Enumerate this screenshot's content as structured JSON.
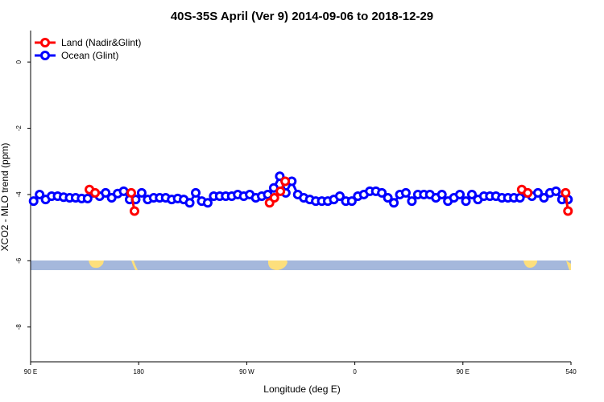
{
  "chart_data": {
    "type": "line",
    "title": "40S-35S April (Ver 9)   2014-09-06 to 2018-12-29",
    "xlabel": "Longitude (deg E)",
    "ylabel": "XCO2 - MLO trend (ppm)",
    "xlim": [
      90,
      540
    ],
    "ylim": [
      -9.05,
      0.95
    ],
    "xticks": [
      {
        "value": 90,
        "label": "90 E"
      },
      180,
      {
        "value": 270,
        "label": "90 W"
      },
      {
        "value": 360,
        "label": "0"
      },
      {
        "value": 450,
        "label": "90 E"
      },
      540
    ],
    "yticks": [
      0,
      -2,
      -4,
      -6,
      -8
    ],
    "legend": "top-left",
    "series": [
      {
        "name": "Land (Nadir&Glint)",
        "color": "#ff0000",
        "x": [
          139,
          143.7,
          null,
          173.8,
          176.5,
          null,
          289,
          293,
          298,
          302,
          null,
          499,
          504,
          null,
          535.5,
          537.5
        ],
        "values": [
          -3.85,
          -3.95,
          null,
          -3.95,
          -4.5,
          null,
          -4.25,
          -4.1,
          -3.9,
          -3.6,
          null,
          -3.85,
          -3.95,
          null,
          -3.95,
          -4.5
        ]
      },
      {
        "name": "Ocean (Glint)",
        "color": "#0000ff",
        "x": [
          92.5,
          97.5,
          102.5,
          107.5,
          112.5,
          117.5,
          122.5,
          127.5,
          132.5,
          137.5,
          142.5,
          147.5,
          152.5,
          157.5,
          162.5,
          167.5,
          172.5,
          177.5,
          182.5,
          187.5,
          192.5,
          197.5,
          202.5,
          207.5,
          212.5,
          217.5,
          222.5,
          227.5,
          232.5,
          237.5,
          242.5,
          247.5,
          252.5,
          257.5,
          262.5,
          267.5,
          272.5,
          277.5,
          282.5,
          287.5,
          292.5,
          297.5,
          302.5,
          307.5,
          312.5,
          317.5,
          322.5,
          327.5,
          332.5,
          337.5,
          342.5,
          347.5,
          352.5,
          357.5,
          362.5,
          367.5,
          372.5,
          377.5,
          382.5,
          387.5,
          392.5,
          397.5,
          402.5,
          407.5,
          412.5,
          417.5,
          422.5,
          427.5,
          432.5,
          437.5,
          442.5,
          447.5,
          452.5,
          457.5,
          462.5,
          467.5,
          472.5,
          477.5,
          482.5,
          487.5,
          492.5,
          497.5,
          502.5,
          507.5,
          512.5,
          517.5,
          522.5,
          527.5,
          532.5,
          537.5
        ],
        "values": [
          -4.2,
          -4.0,
          -4.15,
          -4.05,
          -4.05,
          -4.08,
          -4.1,
          -4.1,
          -4.12,
          -4.12,
          -3.95,
          -4.05,
          -3.95,
          -4.1,
          -3.97,
          -3.9,
          -4.15,
          -4.15,
          -3.95,
          -4.15,
          -4.1,
          -4.1,
          -4.1,
          -4.15,
          -4.12,
          -4.15,
          -4.25,
          -3.95,
          -4.2,
          -4.25,
          -4.05,
          -4.05,
          -4.05,
          -4.05,
          -4.0,
          -4.05,
          -4.0,
          -4.1,
          -4.05,
          -4.0,
          -3.8,
          -3.45,
          -3.95,
          -3.6,
          -4.0,
          -4.1,
          -4.15,
          -4.2,
          -4.2,
          -4.2,
          -4.15,
          -4.05,
          -4.2,
          -4.2,
          -4.05,
          -4.0,
          -3.9,
          -3.9,
          -3.95,
          -4.1,
          -4.25,
          -4.0,
          -3.95,
          -4.2,
          -4.0,
          -4.0,
          -4.0,
          -4.1,
          -4.0,
          -4.2,
          -4.1,
          -4.0,
          -4.2,
          -4.0,
          -4.15,
          -4.05,
          -4.05,
          -4.05,
          -4.1,
          -4.1,
          -4.1,
          -4.1,
          -3.95,
          -4.05,
          -3.95,
          -4.1,
          -3.95,
          -3.9,
          -4.15,
          -4.15
        ]
      }
    ]
  }
}
